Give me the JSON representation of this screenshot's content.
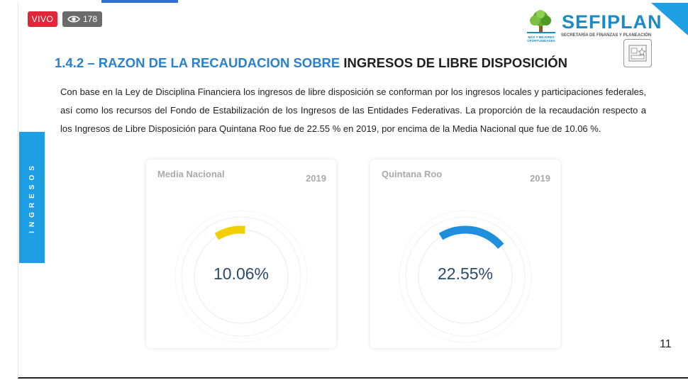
{
  "stream": {
    "live_label": "VIVO",
    "viewer_count": "178",
    "viewer_icon": "eye-icon"
  },
  "logo": {
    "name": "SEFIPLAN",
    "subtitle": "SECRETARÍA DE FINANZAS Y PLANEACIÓN",
    "tagline": "MÁS Y MEJORES OPORTUNIDADES"
  },
  "slide": {
    "heading_blue": "1.4.2 – RAZON DE LA RECAUDACION SOBRE",
    "heading_dark": "INGRESOS DE LIBRE DISPOSICIÓN",
    "paragraph": "Con base en la Ley de Disciplina Financiera los ingresos de libre disposición se conforman por los ingresos locales y participaciones federales, así como los recursos del Fondo de Estabilización de los Ingresos de las Entidades Federativas. La proporción de la recaudación respecto a los Ingresos de Libre Disposición para Quintana Roo fue de 22.55 % en 2019, por encima de la Media Nacional que fue de 10.06 %.",
    "side_tab": "INGRESOS",
    "page_number": "11"
  },
  "cards": [
    {
      "title": "Media Nacional",
      "year": "2019",
      "value_label": "10.06%",
      "value": 10.06,
      "color": "#f2cf00"
    },
    {
      "title": "Quintana Roo",
      "year": "2019",
      "value_label": "22.55%",
      "value": 22.55,
      "color": "#1f8fdd"
    }
  ]
}
